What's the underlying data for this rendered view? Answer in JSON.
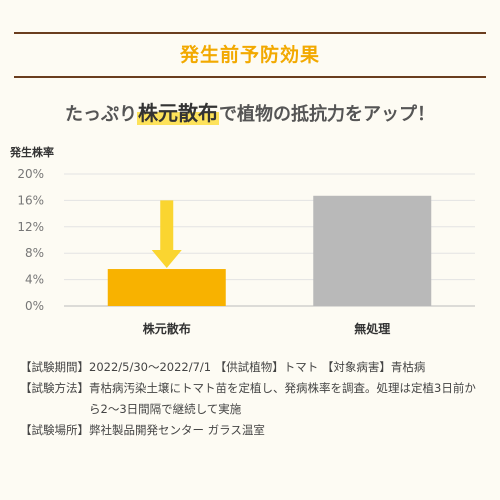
{
  "section_title": "発生前予防効果",
  "headline": {
    "pre": "たっぷり",
    "highlight": "株元散布",
    "post": "で植物の抵抗力をアップ！"
  },
  "chart_data": {
    "type": "bar",
    "ylabel": "発生株率",
    "categories": [
      "株元散布",
      "無処理"
    ],
    "values": [
      5.6,
      16.7
    ],
    "unit": "%",
    "ylim": [
      0,
      20
    ],
    "yticks": [
      0,
      4,
      8,
      12,
      16,
      20
    ],
    "ytick_labels": [
      "0%",
      "4%",
      "8%",
      "12%",
      "16%",
      "20%"
    ],
    "bar_colors": [
      "#f8b200",
      "#b9b9b9"
    ],
    "annotation": {
      "type": "down-arrow",
      "target": "株元散布",
      "color": "#fad530"
    },
    "grid": true
  },
  "notes": [
    {
      "key": "【試験期間】",
      "value": "2022/5/30〜2022/7/1 【供試植物】トマト 【対象病害】青枯病"
    },
    {
      "key": "【試験方法】",
      "value": "青枯病汚染土壌にトマト苗を定植し、発病株率を調査。処理は定植3日前から2〜3日間隔で継続して実施"
    },
    {
      "key": "【試験場所】",
      "value": "弊社製品開発センター ガラス温室"
    }
  ]
}
